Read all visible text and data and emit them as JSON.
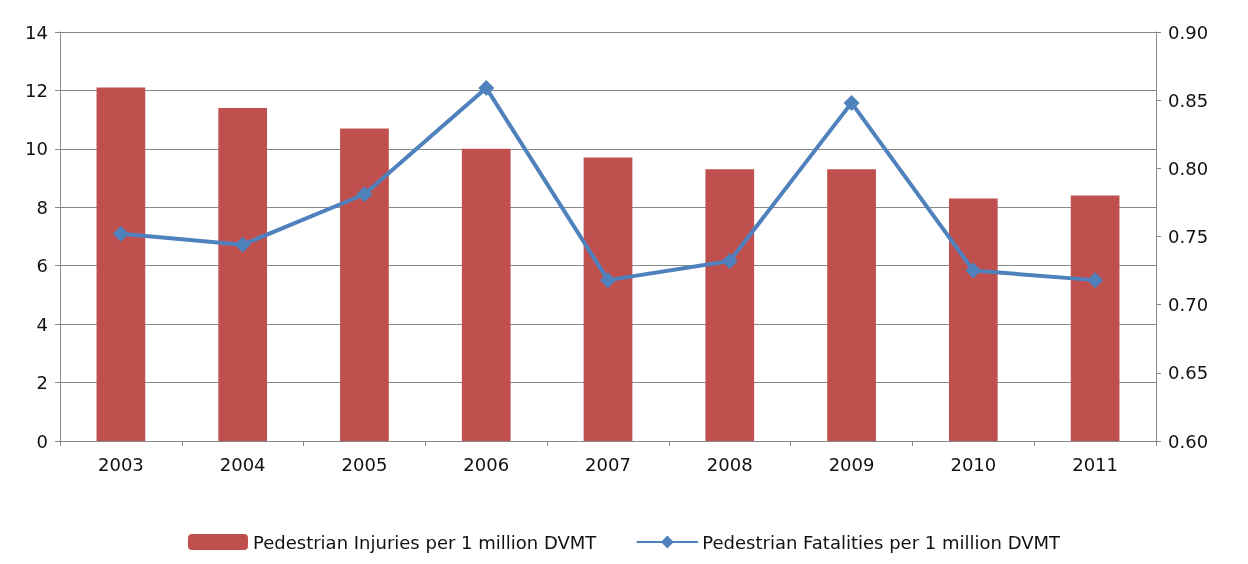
{
  "chart_data": {
    "type": "bar",
    "categories": [
      "2003",
      "2004",
      "2005",
      "2006",
      "2007",
      "2008",
      "2009",
      "2010",
      "2011"
    ],
    "series": [
      {
        "name": "Pedestrian Injuries per 1 million DVMT",
        "color": "#c0504d",
        "values": [
          12.1,
          11.4,
          10.7,
          10.0,
          9.7,
          9.3,
          9.3,
          8.3,
          8.4
        ]
      },
      {
        "name": "Pedestrian Fatalities per 1 million DVMT",
        "type": "line",
        "axis": "y2",
        "color": "#4f81bd",
        "marker": "diamond",
        "values": [
          0.752,
          0.744,
          0.781,
          0.859,
          0.718,
          0.732,
          0.848,
          0.725,
          0.718
        ]
      }
    ],
    "ylim": [
      0,
      14
    ],
    "yticks": [
      0,
      2,
      4,
      6,
      8,
      10,
      12,
      14
    ],
    "y2lim": [
      0.6,
      0.9
    ],
    "y2ticks": [
      {
        "value": 0.6,
        "label": "0.60"
      },
      {
        "value": 0.65,
        "label": "0.65"
      },
      {
        "value": 0.7,
        "label": "0.70"
      },
      {
        "value": 0.75,
        "label": "0.75"
      },
      {
        "value": 0.8,
        "label": "0.80"
      },
      {
        "value": 0.85,
        "label": "0.85"
      },
      {
        "value": 0.9,
        "label": "0.90"
      }
    ],
    "grid": "y",
    "legend": "bottom"
  }
}
